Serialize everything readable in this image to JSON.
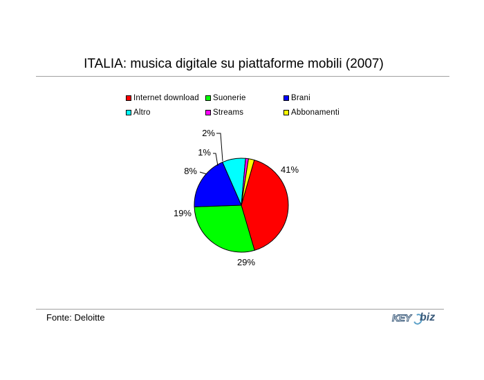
{
  "chart_data": {
    "type": "pie",
    "title": "ITALIA: musica digitale su piattaforme mobili (2007)",
    "slices": [
      {
        "label": "Internet download",
        "value": 41,
        "value_label": "41%",
        "color": "#ff0000"
      },
      {
        "label": "Suonerie",
        "value": 29,
        "value_label": "29%",
        "color": "#00ff00"
      },
      {
        "label": "Brani",
        "value": 19,
        "value_label": "19%",
        "color": "#0000ff"
      },
      {
        "label": "Altro",
        "value": 8,
        "value_label": "8%",
        "color": "#00ffff"
      },
      {
        "label": "Streams",
        "value": 1,
        "value_label": "1%",
        "color": "#ff00ff"
      },
      {
        "label": "Abbonamenti",
        "value": 2,
        "value_label": "2%",
        "color": "#ffff00"
      }
    ],
    "legend_position": "top"
  },
  "footer": {
    "source": "Fonte: Deloitte",
    "logo_text_left": "KEY",
    "logo_text_right": "biz"
  }
}
